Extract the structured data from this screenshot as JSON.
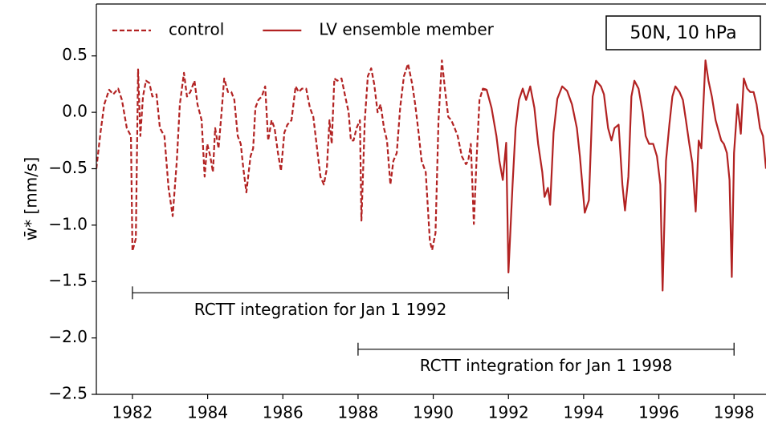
{
  "chart_data": {
    "type": "line",
    "ylabel": "w̄* [mm/s]",
    "xlim": [
      1981.04,
      1998.85
    ],
    "ylim": [
      -2.5,
      0.96
    ],
    "xticks": [
      1982,
      1984,
      1986,
      1988,
      1990,
      1992,
      1994,
      1996,
      1998
    ],
    "yticks": [
      {
        "value": -2.5,
        "label": "−2.5"
      },
      {
        "value": -2.0,
        "label": "−2.0"
      },
      {
        "value": -1.5,
        "label": "−1.5"
      },
      {
        "value": -1.0,
        "label": "−1.0"
      },
      {
        "value": -0.5,
        "label": "−0.5"
      },
      {
        "value": 0.0,
        "label": "0.0"
      },
      0.5
    ],
    "legend": "upper left",
    "box_label": "50N, 10 hPa",
    "series": [
      {
        "name": "control",
        "color": "#b22222",
        "dashed": true,
        "x": [
          1981.04,
          1981.15,
          1981.25,
          1981.38,
          1981.49,
          1981.62,
          1981.72,
          1981.85,
          1981.96,
          1982.0,
          1982.09,
          1982.15,
          1982.21,
          1982.28,
          1982.36,
          1982.45,
          1982.53,
          1982.64,
          1982.73,
          1982.85,
          1982.96,
          1983.07,
          1983.18,
          1983.26,
          1983.37,
          1983.45,
          1983.54,
          1983.65,
          1983.73,
          1983.84,
          1983.92,
          1983.99,
          1984.07,
          1984.14,
          1984.2,
          1984.29,
          1984.37,
          1984.44,
          1984.54,
          1984.63,
          1984.71,
          1984.8,
          1984.88,
          1984.95,
          1985.03,
          1985.14,
          1985.21,
          1985.27,
          1985.35,
          1985.44,
          1985.53,
          1985.61,
          1985.7,
          1985.78,
          1985.87,
          1985.95,
          1986.04,
          1986.12,
          1986.23,
          1986.34,
          1986.42,
          1986.51,
          1986.62,
          1986.72,
          1986.81,
          1986.91,
          1987.0,
          1987.09,
          1987.17,
          1987.24,
          1987.3,
          1987.37,
          1987.45,
          1987.56,
          1987.66,
          1987.75,
          1987.81,
          1987.88,
          1987.96,
          1988.05,
          1988.09,
          1988.18,
          1988.26,
          1988.35,
          1988.43,
          1988.52,
          1988.6,
          1988.69,
          1988.77,
          1988.86,
          1988.94,
          1989.03,
          1989.12,
          1989.22,
          1989.33,
          1989.44,
          1989.52,
          1989.61,
          1989.69,
          1989.8,
          1989.91,
          1989.97,
          1990.06,
          1990.14,
          1990.23,
          1990.31,
          1990.4,
          1990.48,
          1990.57,
          1990.65,
          1990.76,
          1990.87,
          1990.93,
          1991.0,
          1991.08,
          1991.15,
          1991.23,
          1991.32,
          1991.44
        ],
        "values": [
          -0.5,
          -0.18,
          0.07,
          0.2,
          0.16,
          0.21,
          0.11,
          -0.14,
          -0.21,
          -1.23,
          -1.12,
          0.38,
          -0.21,
          0.14,
          0.28,
          0.26,
          0.14,
          0.16,
          -0.14,
          -0.21,
          -0.67,
          -0.92,
          -0.43,
          0.07,
          0.35,
          0.14,
          0.18,
          0.28,
          0.07,
          -0.07,
          -0.57,
          -0.28,
          -0.39,
          -0.53,
          -0.14,
          -0.32,
          0.0,
          0.3,
          0.18,
          0.18,
          0.11,
          -0.21,
          -0.28,
          -0.5,
          -0.71,
          -0.39,
          -0.32,
          0.04,
          0.11,
          0.14,
          0.23,
          -0.25,
          -0.07,
          -0.14,
          -0.36,
          -0.52,
          -0.18,
          -0.11,
          -0.07,
          0.23,
          0.18,
          0.21,
          0.21,
          0.04,
          -0.04,
          -0.32,
          -0.57,
          -0.64,
          -0.5,
          -0.07,
          -0.28,
          0.3,
          0.28,
          0.3,
          0.14,
          0.0,
          -0.25,
          -0.25,
          -0.14,
          -0.07,
          -0.96,
          -0.07,
          0.32,
          0.39,
          0.25,
          0.0,
          0.07,
          -0.14,
          -0.25,
          -0.64,
          -0.43,
          -0.36,
          0.04,
          0.32,
          0.43,
          0.25,
          0.07,
          -0.18,
          -0.43,
          -0.53,
          -1.14,
          -1.22,
          -1.07,
          -0.07,
          0.46,
          0.21,
          -0.04,
          -0.07,
          -0.14,
          -0.21,
          -0.39,
          -0.46,
          -0.43,
          -0.28,
          -0.99,
          -0.43,
          0.11,
          0.21,
          0.2
        ]
      },
      {
        "name": "LV ensemble member",
        "color": "#b22222",
        "dashed": false,
        "x": [
          1991.29,
          1991.42,
          1991.55,
          1991.68,
          1991.76,
          1991.85,
          1991.94,
          1992.0,
          1992.11,
          1992.19,
          1992.28,
          1992.38,
          1992.47,
          1992.58,
          1992.69,
          1992.79,
          1992.9,
          1992.96,
          1993.05,
          1993.11,
          1993.2,
          1993.3,
          1993.43,
          1993.56,
          1993.69,
          1993.82,
          1993.9,
          1994.03,
          1994.14,
          1994.24,
          1994.33,
          1994.46,
          1994.54,
          1994.65,
          1994.74,
          1994.82,
          1994.93,
          1995.03,
          1995.1,
          1995.19,
          1995.27,
          1995.35,
          1995.46,
          1995.57,
          1995.65,
          1995.74,
          1995.85,
          1995.95,
          1996.04,
          1996.1,
          1996.19,
          1996.28,
          1996.36,
          1996.44,
          1996.55,
          1996.64,
          1996.72,
          1996.81,
          1996.89,
          1996.98,
          1997.06,
          1997.13,
          1997.24,
          1997.32,
          1997.41,
          1997.51,
          1997.6,
          1997.66,
          1997.73,
          1997.81,
          1997.88,
          1997.94,
          1998.0,
          1998.09,
          1998.18,
          1998.26,
          1998.35,
          1998.43,
          1998.52,
          1998.6,
          1998.69,
          1998.77,
          1998.85
        ],
        "values": [
          0.2,
          0.2,
          0.04,
          -0.21,
          -0.43,
          -0.6,
          -0.27,
          -1.42,
          -0.64,
          -0.14,
          0.11,
          0.21,
          0.11,
          0.23,
          0.04,
          -0.28,
          -0.53,
          -0.75,
          -0.67,
          -0.82,
          -0.18,
          0.12,
          0.23,
          0.19,
          0.07,
          -0.14,
          -0.39,
          -0.89,
          -0.78,
          0.14,
          0.28,
          0.23,
          0.16,
          -0.14,
          -0.25,
          -0.14,
          -0.11,
          -0.64,
          -0.87,
          -0.57,
          0.14,
          0.28,
          0.21,
          0.0,
          -0.21,
          -0.28,
          -0.28,
          -0.39,
          -0.64,
          -1.58,
          -0.43,
          -0.11,
          0.14,
          0.23,
          0.18,
          0.11,
          -0.07,
          -0.28,
          -0.45,
          -0.88,
          -0.25,
          -0.32,
          0.46,
          0.28,
          0.14,
          -0.07,
          -0.18,
          -0.25,
          -0.28,
          -0.36,
          -0.6,
          -1.46,
          -0.36,
          0.07,
          -0.19,
          0.3,
          0.21,
          0.18,
          0.18,
          0.07,
          -0.14,
          -0.21,
          -0.5
        ]
      }
    ],
    "annotations": [
      {
        "text": "RCTT integration for Jan 1 1992",
        "x": [
          1982,
          1992
        ],
        "y": -1.6
      },
      {
        "text": "RCTT integration for Jan 1 1998",
        "x": [
          1988,
          1998
        ],
        "y": -2.1
      }
    ]
  }
}
